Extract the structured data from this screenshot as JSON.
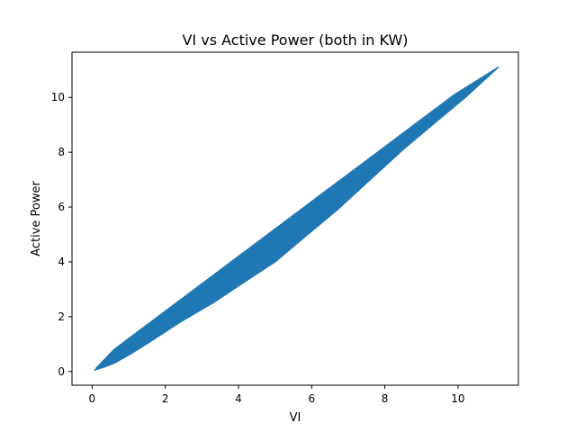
{
  "chart_data": {
    "type": "line",
    "title": "VI vs Active Power (both in KW)",
    "xlabel": "VI",
    "ylabel": "Active Power",
    "xlim": [
      -0.55,
      11.65
    ],
    "ylim": [
      -0.5,
      11.65
    ],
    "xticks": [
      0,
      2,
      4,
      6,
      8,
      10
    ],
    "yticks": [
      0,
      2,
      4,
      6,
      8,
      10
    ],
    "grid": false,
    "series": [
      {
        "color": "#1f77b4",
        "x": [
          0.05,
          0.3,
          0.6,
          1.0,
          1.6,
          2.4,
          3.3,
          4.2,
          5.0,
          5.8,
          6.7,
          7.6,
          8.5,
          9.3,
          10.2,
          11.1,
          9.9,
          8.7,
          7.5,
          6.2,
          5.2,
          4.3,
          3.5,
          2.7,
          1.9,
          1.2,
          0.6,
          0.1
        ],
        "y": [
          0.05,
          0.15,
          0.3,
          0.6,
          1.1,
          1.8,
          2.5,
          3.3,
          4.0,
          4.9,
          5.9,
          7.0,
          8.1,
          9.0,
          10.0,
          11.1,
          10.1,
          8.9,
          7.7,
          6.4,
          5.4,
          4.5,
          3.7,
          2.9,
          2.1,
          1.4,
          0.8,
          0.1
        ]
      }
    ]
  }
}
